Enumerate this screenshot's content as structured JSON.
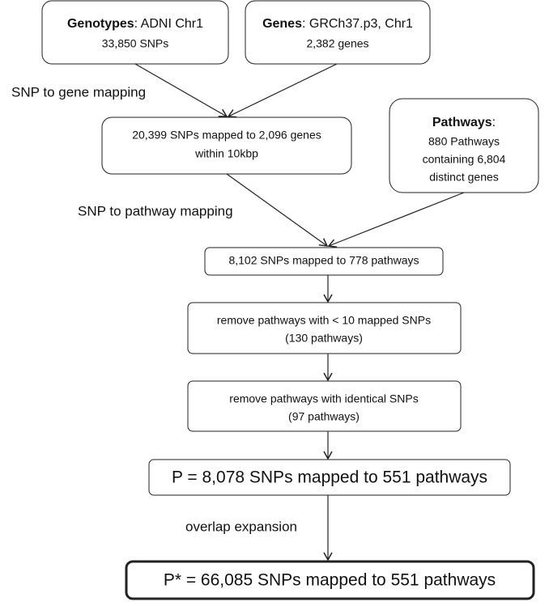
{
  "nodes": [
    {
      "title": "Genotypes",
      "text": ": ADNI Chr1",
      "lines": [
        "33,850 SNPs"
      ]
    },
    {
      "title": "Genes",
      "text": ": GRCh37.p3, Chr1",
      "lines": [
        "2,382 genes"
      ]
    },
    {
      "lines": [
        "20,399 SNPs mapped to 2,096 genes",
        "within 10kbp"
      ]
    },
    {
      "title": "Pathways",
      "text": ":",
      "lines": [
        "880 Pathways",
        "containing 6,804",
        "distinct genes"
      ]
    },
    {
      "lines": [
        "8,102 SNPs mapped to 778 pathways"
      ]
    },
    {
      "lines": [
        "remove pathways with < 10 mapped SNPs",
        "(130 pathways)"
      ]
    },
    {
      "lines": [
        "remove pathways with identical SNPs",
        "(97 pathways)"
      ]
    },
    {
      "lines": [
        "P = 8,078 SNPs mapped to 551 pathways"
      ]
    },
    {
      "lines": [
        "P* = 66,085 SNPs mapped to 551 pathways"
      ]
    }
  ],
  "edge_labels": [
    "SNP to gene mapping",
    "SNP to pathway mapping",
    "overlap expansion"
  ]
}
